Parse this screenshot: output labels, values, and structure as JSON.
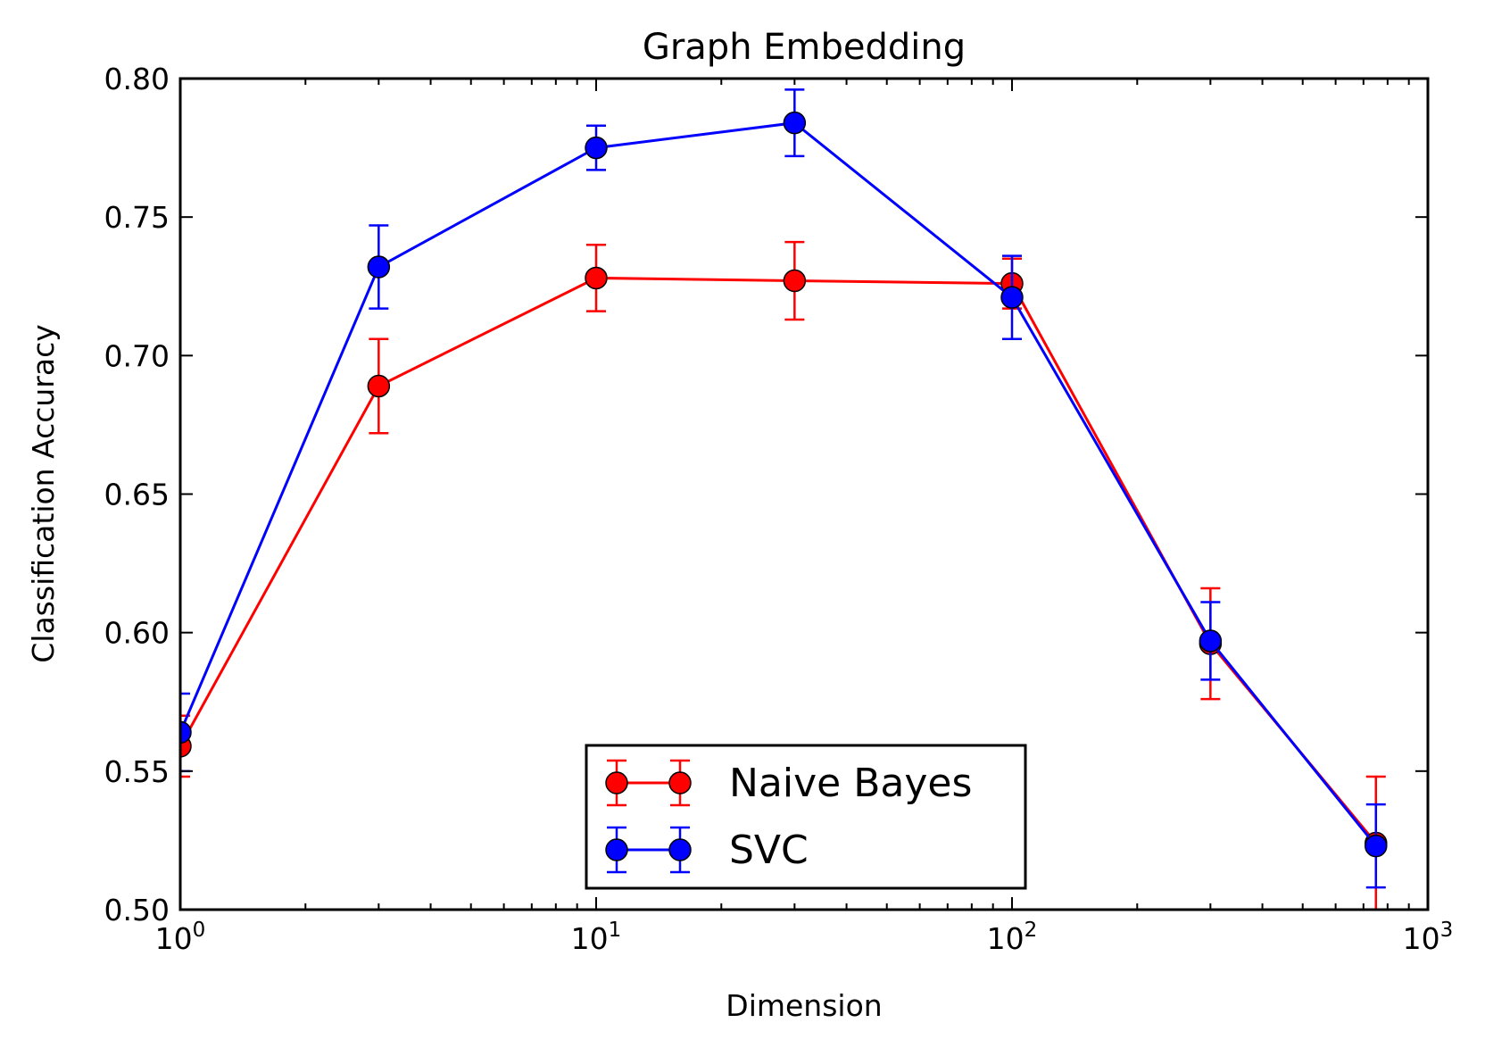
{
  "chart_data": {
    "type": "line",
    "title": "Graph Embedding",
    "xlabel": "Dimension",
    "ylabel": "Classification Accuracy",
    "xscale": "log",
    "xlim": [
      1,
      1000
    ],
    "ylim": [
      0.5,
      0.8
    ],
    "xticks": [
      {
        "value": 1,
        "base": "10",
        "exp": "0"
      },
      {
        "value": 10,
        "base": "10",
        "exp": "1"
      },
      {
        "value": 100,
        "base": "10",
        "exp": "2"
      },
      {
        "value": 1000,
        "base": "10",
        "exp": "3"
      }
    ],
    "yticks": [
      {
        "value": 0.5,
        "label": "0.50"
      },
      {
        "value": 0.55,
        "label": "0.55"
      },
      {
        "value": 0.6,
        "label": "0.60"
      },
      {
        "value": 0.65,
        "label": "0.65"
      },
      {
        "value": 0.7,
        "label": "0.70"
      },
      {
        "value": 0.75,
        "label": "0.75"
      },
      {
        "value": 0.8,
        "label": "0.80"
      }
    ],
    "grid": false,
    "legend_position": "lower-center",
    "x": [
      1,
      3,
      10,
      30,
      100,
      300,
      750
    ],
    "series": [
      {
        "name": "Naive Bayes",
        "color": "#ff0000",
        "values": [
          0.559,
          0.689,
          0.728,
          0.727,
          0.726,
          0.596,
          0.524
        ],
        "errors": [
          0.011,
          0.017,
          0.012,
          0.014,
          0.009,
          0.02,
          0.024
        ]
      },
      {
        "name": "SVC",
        "color": "#0000ff",
        "values": [
          0.564,
          0.732,
          0.775,
          0.784,
          0.721,
          0.597,
          0.523
        ],
        "errors": [
          0.014,
          0.015,
          0.008,
          0.012,
          0.015,
          0.014,
          0.015
        ]
      }
    ]
  }
}
